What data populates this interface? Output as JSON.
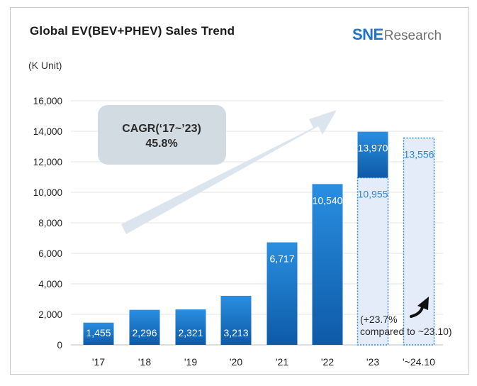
{
  "header": {
    "title": "Global EV(BEV+PHEV) Sales Trend",
    "unit": "(K Unit)",
    "logo_sne": "SNE",
    "logo_research": "Research"
  },
  "chart_data": {
    "type": "bar",
    "title": "Global EV(BEV+PHEV) Sales Trend",
    "ylabel": "(K Unit)",
    "ylim": [
      0,
      16000
    ],
    "yticks": [
      0,
      2000,
      4000,
      6000,
      8000,
      10000,
      12000,
      14000,
      16000
    ],
    "ytick_labels": [
      "0",
      "2,000",
      "4,000",
      "6,000",
      "8,000",
      "10,000",
      "12,000",
      "14,000",
      "16,000"
    ],
    "categories": [
      "'17",
      "'18",
      "'19",
      "'20",
      "'21",
      "'22",
      "'23",
      "'~24.10"
    ],
    "values": [
      1455,
      2296,
      2321,
      3213,
      6717,
      10540,
      13970,
      13556
    ],
    "labels": [
      "1,455",
      "2,296",
      "2,321",
      "3,213",
      "6,717",
      "10,540",
      "13,970",
      "13,556"
    ],
    "partial_2023": {
      "value": 10955,
      "label": "10,955"
    },
    "grid": true,
    "annotations": {
      "cagr_line1": "CAGR(‘17~’23)",
      "cagr_line2": "45.8%",
      "growth_line1": "(+23.7%",
      "growth_line2": "compared to ~23.10)"
    },
    "colors": {
      "bar_top": "#2a8ee0",
      "bar_bottom": "#0d5aa7",
      "dotted_fill": "#e4ecf9",
      "dotted_border": "#2e86d2",
      "partial_text": "#2e86d2",
      "arrow": "#dce5ee",
      "cagr_box": "#d3dbe2"
    }
  }
}
